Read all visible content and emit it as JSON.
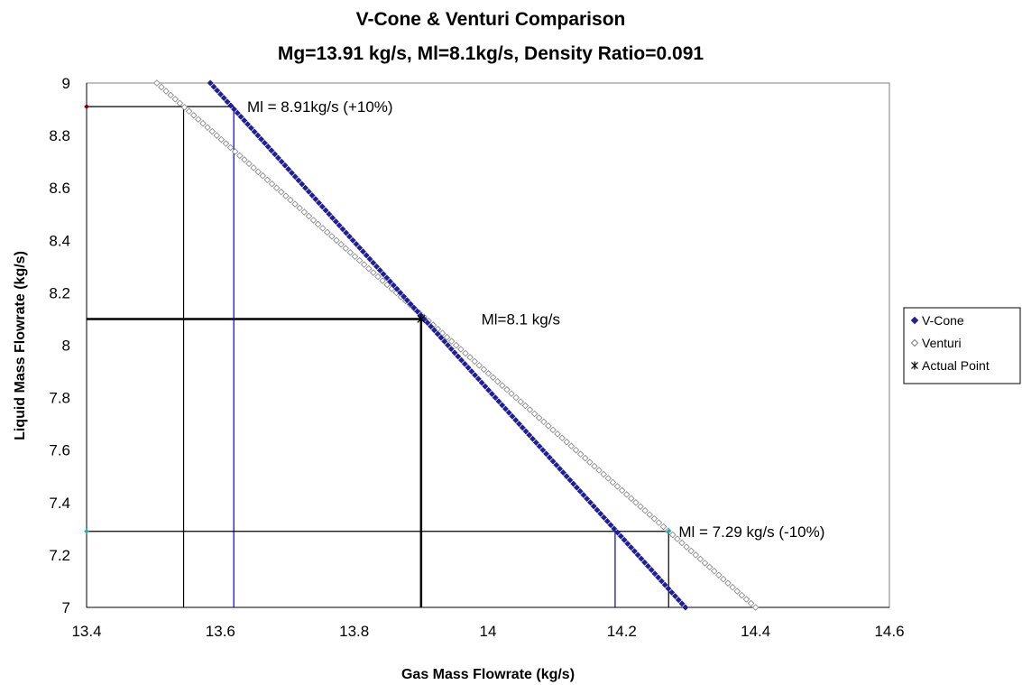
{
  "chart_data": {
    "type": "scatter",
    "title": "V-Cone & Venturi Comparison",
    "subtitle": "Mg=13.91 kg/s, Ml=8.1kg/s, Density Ratio=0.091",
    "xlabel": "Gas Mass Flowrate (kg/s)",
    "ylabel": "Liquid Mass Flowrate (kg/s)",
    "xlim": [
      13.4,
      14.6
    ],
    "ylim": [
      7,
      9
    ],
    "xticks": [
      "13.4",
      "13.6",
      "13.8",
      "14",
      "14.2",
      "14.4",
      "14.6"
    ],
    "yticks": [
      "7",
      "7.2",
      "7.4",
      "7.6",
      "7.8",
      "8",
      "8.2",
      "8.4",
      "8.6",
      "8.8",
      "9"
    ],
    "grid": false,
    "legend_position": "right",
    "series": [
      {
        "name": "V-Cone",
        "color": "#1f1f9a",
        "marker": "diamond-filled",
        "x": [
          13.585,
          14.295
        ],
        "y": [
          9.0,
          7.0
        ]
      },
      {
        "name": "Venturi",
        "color": "#808080",
        "marker": "diamond-open",
        "x": [
          13.505,
          14.4
        ],
        "y": [
          9.0,
          7.0
        ]
      },
      {
        "name": "Actual Point",
        "color": "#000000",
        "marker": "asterisk",
        "x": [
          13.9
        ],
        "y": [
          8.1
        ]
      }
    ],
    "reference_lines": [
      {
        "color": "#000000",
        "weight": "bold",
        "x": [
          13.4,
          13.9,
          13.9
        ],
        "y": [
          8.1,
          8.1,
          7.0
        ]
      },
      {
        "color": "#000000",
        "weight": "thin",
        "x": [
          13.4,
          13.62
        ],
        "y": [
          8.91,
          8.91
        ]
      },
      {
        "color": "#000000",
        "weight": "thin",
        "x": [
          13.545,
          13.545
        ],
        "y": [
          8.91,
          7.0
        ]
      },
      {
        "color": "#0000cc",
        "weight": "thin",
        "x": [
          13.62,
          13.62
        ],
        "y": [
          8.91,
          7.0
        ]
      },
      {
        "color": "#000000",
        "weight": "thin",
        "x": [
          13.4,
          14.27
        ],
        "y": [
          7.29,
          7.29
        ]
      },
      {
        "color": "#0000cc",
        "weight": "thin",
        "x": [
          14.19,
          14.19
        ],
        "y": [
          7.29,
          7.0
        ]
      },
      {
        "color": "#000000",
        "weight": "thin",
        "x": [
          14.27,
          14.27
        ],
        "y": [
          7.29,
          7.0
        ]
      }
    ],
    "end_markers": [
      {
        "color": "#800000",
        "x": 13.4,
        "y": 8.91
      },
      {
        "color": "#20b0b0",
        "x": 13.4,
        "y": 7.29
      },
      {
        "color": "#20b0b0",
        "x": 14.27,
        "y": 7.29
      }
    ],
    "annotations": [
      {
        "text": "Ml = 8.91kg/s (+10%)",
        "x": 13.64,
        "y": 8.91
      },
      {
        "text": "Ml=8.1 kg/s",
        "x": 13.99,
        "y": 8.1
      },
      {
        "text": "Ml = 7.29 kg/s (-10%)",
        "x": 14.285,
        "y": 7.29
      }
    ]
  }
}
